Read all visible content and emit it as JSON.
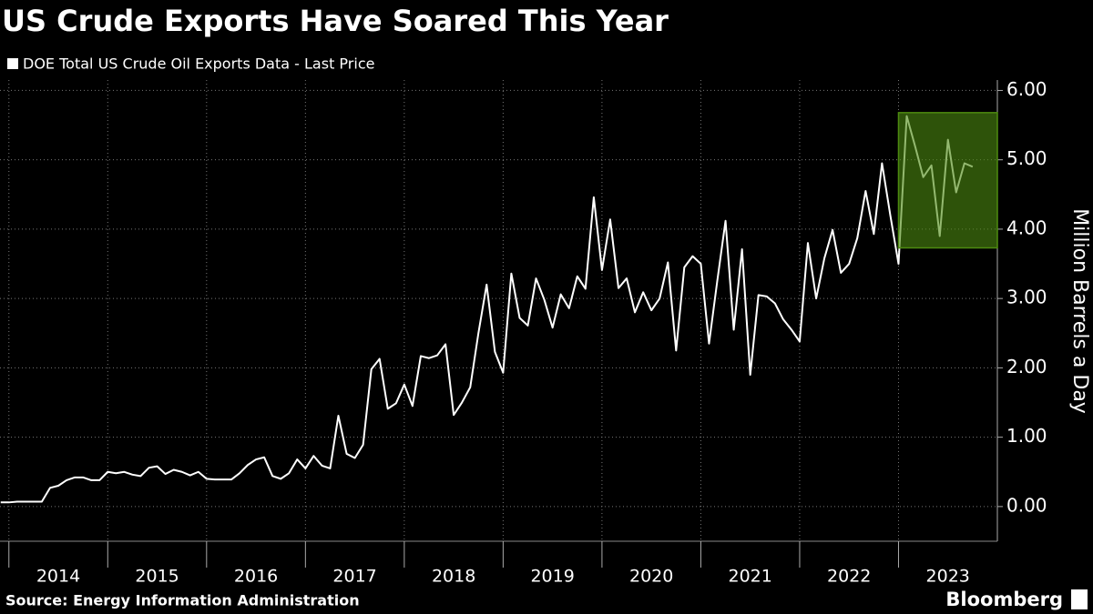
{
  "chart_data": {
    "type": "line",
    "title": "US Crude Exports Have Soared This Year",
    "source": "Source: Energy Information Administration",
    "brand": "Bloomberg",
    "y_label": "Million Barrels a Day",
    "series": [
      {
        "name": "DOE Total US Crude Oil Exports Data - Last Price",
        "color": "#ffffff",
        "x": [
          2013.917,
          2014,
          2014.083,
          2014.167,
          2014.25,
          2014.333,
          2014.417,
          2014.5,
          2014.583,
          2014.667,
          2014.75,
          2014.833,
          2014.917,
          2015,
          2015.083,
          2015.167,
          2015.25,
          2015.333,
          2015.417,
          2015.5,
          2015.583,
          2015.667,
          2015.75,
          2015.833,
          2015.917,
          2016,
          2016.083,
          2016.167,
          2016.25,
          2016.333,
          2016.417,
          2016.5,
          2016.583,
          2016.667,
          2016.75,
          2016.833,
          2016.917,
          2017,
          2017.083,
          2017.167,
          2017.25,
          2017.333,
          2017.417,
          2017.5,
          2017.583,
          2017.667,
          2017.75,
          2017.833,
          2017.917,
          2018,
          2018.083,
          2018.167,
          2018.25,
          2018.333,
          2018.417,
          2018.5,
          2018.583,
          2018.667,
          2018.75,
          2018.833,
          2018.917,
          2019,
          2019.083,
          2019.167,
          2019.25,
          2019.333,
          2019.417,
          2019.5,
          2019.583,
          2019.667,
          2019.75,
          2019.833,
          2019.917,
          2020,
          2020.083,
          2020.167,
          2020.25,
          2020.333,
          2020.417,
          2020.5,
          2020.583,
          2020.667,
          2020.75,
          2020.833,
          2020.917,
          2021,
          2021.083,
          2021.167,
          2021.25,
          2021.333,
          2021.417,
          2021.5,
          2021.583,
          2021.667,
          2021.75,
          2021.833,
          2021.917,
          2022,
          2022.083,
          2022.167,
          2022.25,
          2022.333,
          2022.417,
          2022.5,
          2022.583,
          2022.667,
          2022.75,
          2022.833,
          2022.917,
          2023,
          2023.083,
          2023.167,
          2023.25,
          2023.333,
          2023.417,
          2023.5,
          2023.583,
          2023.667,
          2023.75
        ],
        "values": [
          0.06,
          0.06,
          0.07,
          0.07,
          0.07,
          0.07,
          0.27,
          0.3,
          0.38,
          0.42,
          0.42,
          0.38,
          0.38,
          0.5,
          0.48,
          0.5,
          0.46,
          0.44,
          0.56,
          0.58,
          0.47,
          0.53,
          0.5,
          0.45,
          0.5,
          0.4,
          0.39,
          0.39,
          0.39,
          0.48,
          0.6,
          0.68,
          0.71,
          0.44,
          0.4,
          0.48,
          0.68,
          0.55,
          0.73,
          0.59,
          0.55,
          1.31,
          0.76,
          0.7,
          0.89,
          1.98,
          2.13,
          1.41,
          1.49,
          1.76,
          1.45,
          2.17,
          2.14,
          2.18,
          2.34,
          1.32,
          1.5,
          1.72,
          2.5,
          3.2,
          2.23,
          1.93,
          3.36,
          2.72,
          2.61,
          3.29,
          2.98,
          2.58,
          3.06,
          2.86,
          3.32,
          3.14,
          4.46,
          3.41,
          4.14,
          3.15,
          3.29,
          2.8,
          3.09,
          2.83,
          3.0,
          3.52,
          2.25,
          3.45,
          3.61,
          3.5,
          2.35,
          3.26,
          4.12,
          2.55,
          3.71,
          1.9,
          3.05,
          3.03,
          2.93,
          2.7,
          2.55,
          2.38,
          3.8,
          3.0,
          3.58,
          3.99,
          3.37,
          3.5,
          3.87,
          4.55,
          3.93,
          4.95,
          4.2,
          3.5,
          5.63,
          5.2,
          4.75,
          4.92,
          3.9,
          5.29,
          4.53,
          4.95,
          4.9
        ]
      }
    ],
    "highlight": {
      "xlim": [
        2023,
        2024
      ],
      "ylim": [
        3.73,
        5.68
      ],
      "color": "#4d8a10"
    },
    "xlim": [
      2013.91,
      2024
    ],
    "xticks": [
      {
        "value": 2014,
        "label": "2014"
      },
      {
        "value": 2015,
        "label": "2015"
      },
      {
        "value": 2016,
        "label": "2016"
      },
      {
        "value": 2017,
        "label": "2017"
      },
      {
        "value": 2018,
        "label": "2018"
      },
      {
        "value": 2019,
        "label": "2019"
      },
      {
        "value": 2020,
        "label": "2020"
      },
      {
        "value": 2021,
        "label": "2021"
      },
      {
        "value": 2022,
        "label": "2022"
      },
      {
        "value": 2023,
        "label": "2023"
      }
    ],
    "ylim": [
      -0.5,
      6.15
    ],
    "yticks": [
      {
        "value": 0,
        "label": "0.00"
      },
      {
        "value": 1,
        "label": "1.00"
      },
      {
        "value": 2,
        "label": "2.00"
      },
      {
        "value": 3,
        "label": "3.00"
      },
      {
        "value": 4,
        "label": "4.00"
      },
      {
        "value": 5,
        "label": "5.00"
      },
      {
        "value": 6,
        "label": "6.00"
      }
    ],
    "grid": true
  }
}
